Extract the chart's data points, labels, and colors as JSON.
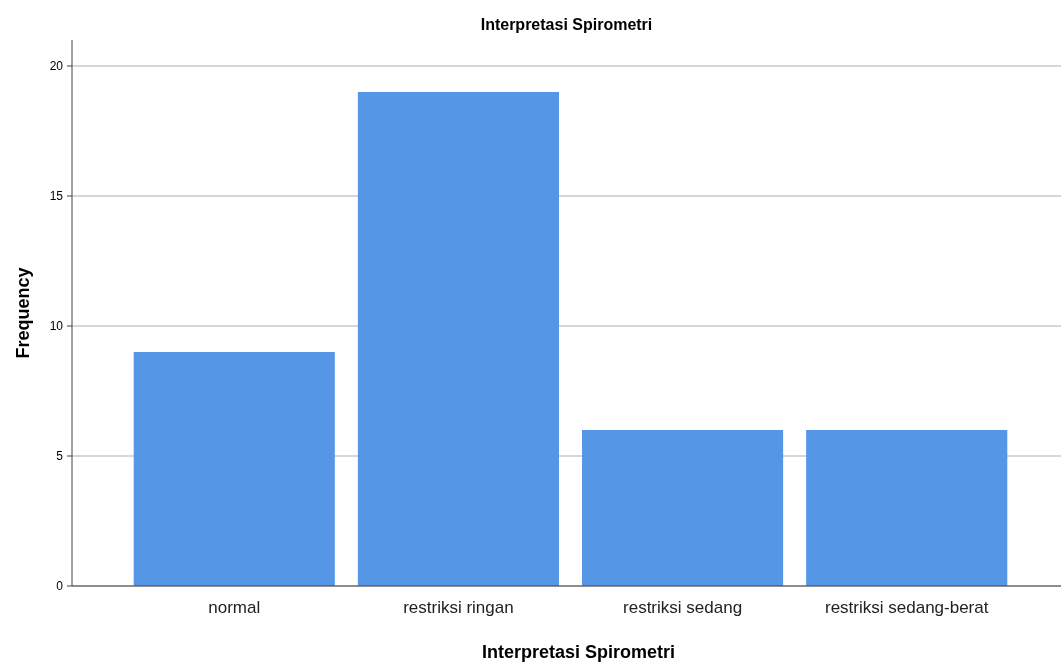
{
  "chart_data": {
    "type": "bar",
    "title": "Interpretasi Spirometri",
    "xlabel": "Interpretasi Spirometri",
    "ylabel": "Frequency",
    "categories": [
      "normal",
      "restriksi ringan",
      "restriksi sedang",
      "restriksi sedang-berat"
    ],
    "values": [
      9,
      19,
      6,
      6
    ],
    "color": "#5596e6",
    "ylim": [
      0,
      21
    ],
    "yticks": [
      0,
      5,
      10,
      15,
      20
    ],
    "grid": "y"
  }
}
